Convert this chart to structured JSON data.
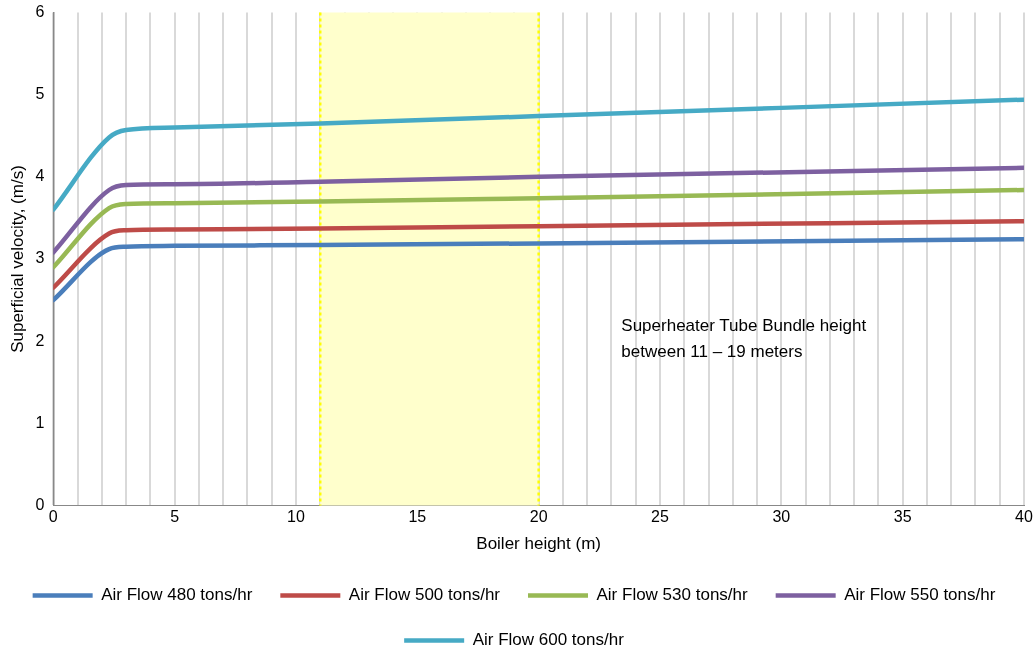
{
  "chart_data": {
    "type": "line",
    "xlabel": "Boiler height (m)",
    "ylabel": "Superficial velocity, (m/s)",
    "x": [
      0,
      2.3,
      3,
      5,
      11,
      20,
      40
    ],
    "series": [
      {
        "name": "Air Flow 480 tons/hr",
        "color": "#4a7ebb",
        "values": [
          2.5,
          3.12,
          3.15,
          3.16,
          3.17,
          3.19,
          3.24
        ]
      },
      {
        "name": "Air Flow 500 tons/hr",
        "color": "#be4b48",
        "values": [
          2.65,
          3.31,
          3.35,
          3.36,
          3.37,
          3.4,
          3.46
        ]
      },
      {
        "name": "Air Flow 530 tons/hr",
        "color": "#98b954",
        "values": [
          2.9,
          3.62,
          3.67,
          3.68,
          3.7,
          3.74,
          3.84
        ]
      },
      {
        "name": "Air Flow 550 tons/hr",
        "color": "#7d60a0",
        "values": [
          3.08,
          3.84,
          3.9,
          3.91,
          3.94,
          4.0,
          4.11
        ]
      },
      {
        "name": "Air Flow 600 tons/hr",
        "color": "#46aac5",
        "values": [
          3.6,
          4.48,
          4.57,
          4.6,
          4.65,
          4.74,
          4.94
        ]
      }
    ],
    "xlim": [
      0,
      40
    ],
    "xticks": [
      0,
      {
        "value": 1,
        "label": null
      },
      {
        "value": 2,
        "label": null
      },
      {
        "value": 3,
        "label": null
      },
      {
        "value": 4,
        "label": null
      },
      5,
      {
        "value": 6,
        "label": null
      },
      {
        "value": 7,
        "label": null
      },
      {
        "value": 8,
        "label": null
      },
      {
        "value": 9,
        "label": null
      },
      10,
      {
        "value": 11,
        "label": null
      },
      {
        "value": 12,
        "label": null
      },
      {
        "value": 13,
        "label": null
      },
      {
        "value": 14,
        "label": null
      },
      15,
      {
        "value": 16,
        "label": null
      },
      {
        "value": 17,
        "label": null
      },
      {
        "value": 18,
        "label": null
      },
      {
        "value": 19,
        "label": null
      },
      20,
      {
        "value": 21,
        "label": null
      },
      {
        "value": 22,
        "label": null
      },
      {
        "value": 23,
        "label": null
      },
      {
        "value": 24,
        "label": null
      },
      25,
      {
        "value": 26,
        "label": null
      },
      {
        "value": 27,
        "label": null
      },
      {
        "value": 28,
        "label": null
      },
      {
        "value": 29,
        "label": null
      },
      30,
      {
        "value": 31,
        "label": null
      },
      {
        "value": 32,
        "label": null
      },
      {
        "value": 33,
        "label": null
      },
      {
        "value": 34,
        "label": null
      },
      35,
      {
        "value": 36,
        "label": null
      },
      {
        "value": 37,
        "label": null
      },
      {
        "value": 38,
        "label": null
      },
      {
        "value": 39,
        "label": null
      },
      40
    ],
    "ylim": [
      0,
      6
    ],
    "yticks": [
      0,
      1,
      2,
      3,
      4,
      5,
      6
    ],
    "grid": "x",
    "legend": "bottom",
    "marker": "none",
    "line_style": "solid",
    "bands": [
      {
        "axis": "x",
        "from": 11,
        "to": 20,
        "color": "#ffffcc"
      }
    ],
    "annotations": [
      "Superheater Tube Bundle height between 11 – 19 meters"
    ]
  }
}
